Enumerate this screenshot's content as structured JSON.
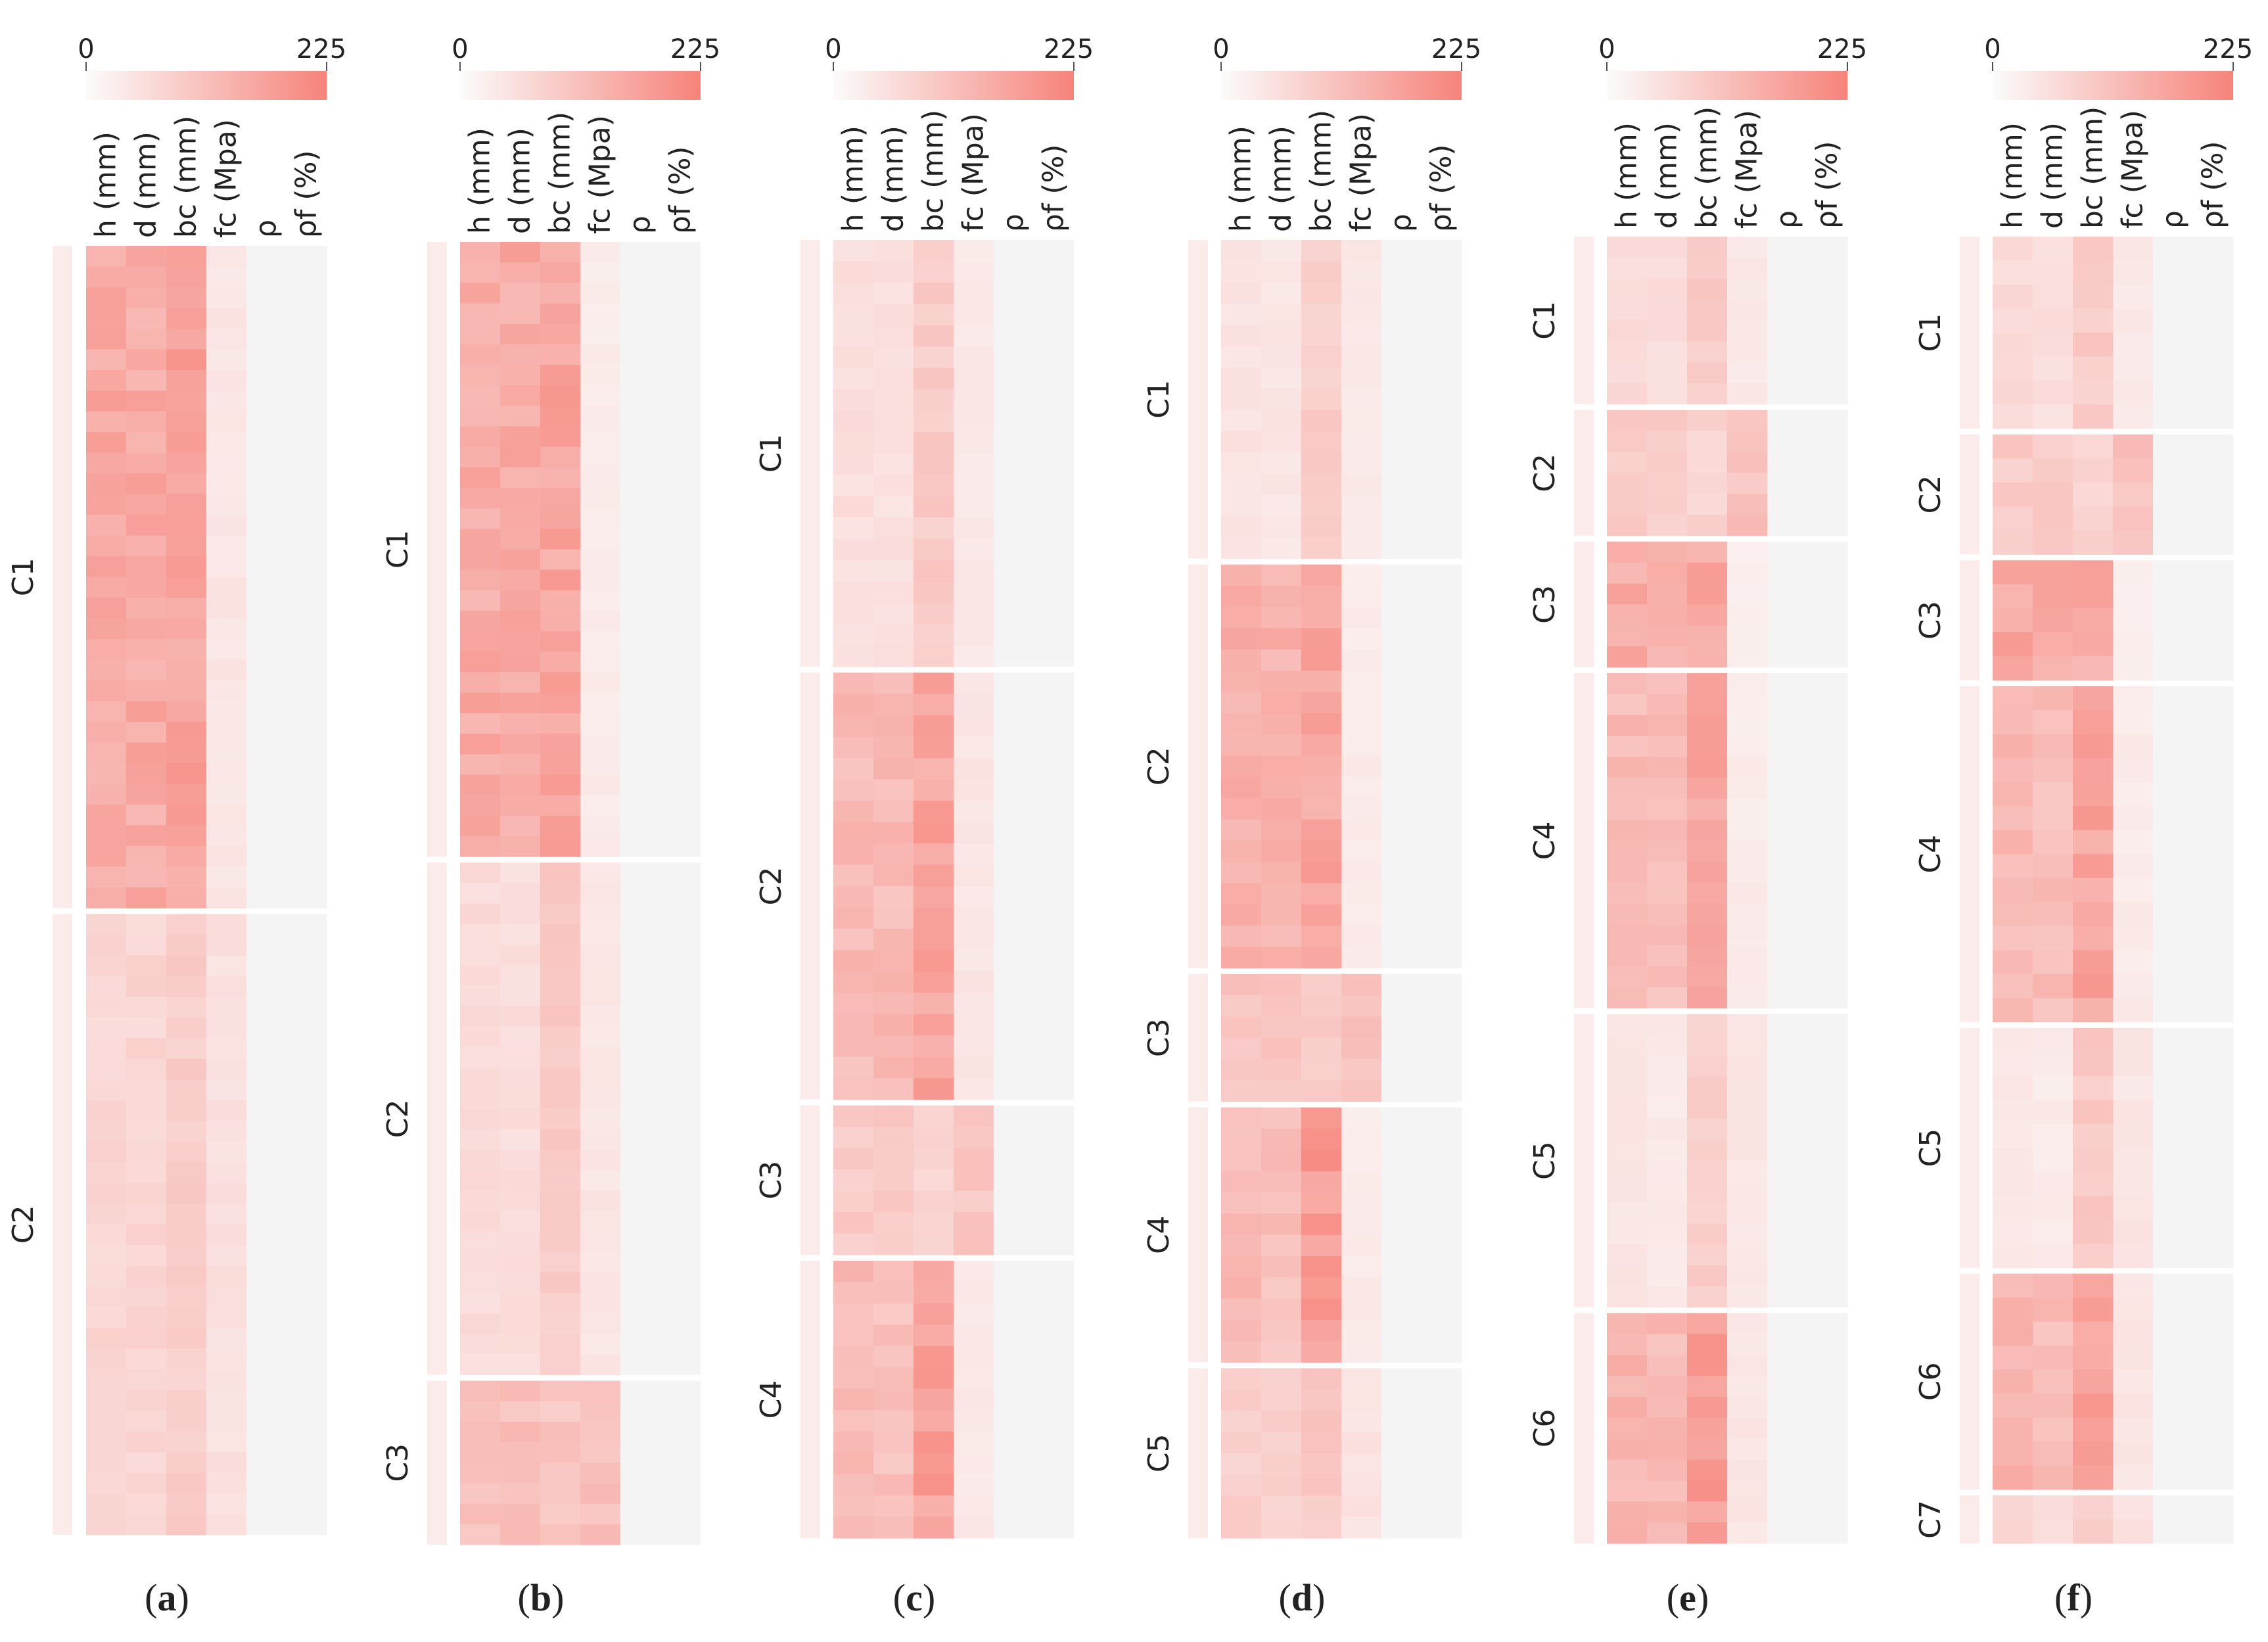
{
  "colors": {
    "low": "#fbfbfb",
    "high": "#f6837a",
    "background": "#f4f4f4",
    "separator": "#ffffff"
  },
  "chart_data": [
    {
      "type": "heatmap",
      "panel": "a",
      "colorbar": {
        "min": 0,
        "max": 225,
        "ticks": [
          "0",
          "225"
        ]
      },
      "columns": [
        "h (mm)",
        "d (mm)",
        "bc (mm)",
        "fc (Mpa)",
        "ρ",
        "ρf (%)"
      ],
      "clusters": [
        {
          "label": "C1",
          "rows": 32,
          "mean": [
            150,
            150,
            165,
            40,
            2,
            1
          ]
        },
        {
          "label": "C2",
          "rows": 30,
          "mean": [
            70,
            70,
            85,
            50,
            2,
            1
          ]
        }
      ]
    },
    {
      "type": "heatmap",
      "panel": "b",
      "colorbar": {
        "min": 0,
        "max": 225,
        "ticks": [
          "0",
          "225"
        ]
      },
      "columns": [
        "h (mm)",
        "d (mm)",
        "bc (mm)",
        "fc (Mpa)",
        "ρ",
        "ρf (%)"
      ],
      "clusters": [
        {
          "label": "C1",
          "rows": 30,
          "mean": [
            150,
            150,
            160,
            30,
            2,
            1
          ]
        },
        {
          "label": "C2",
          "rows": 25,
          "mean": [
            60,
            55,
            90,
            40,
            2,
            1
          ]
        },
        {
          "label": "C3",
          "rows": 8,
          "mean": [
            110,
            110,
            100,
            110,
            2,
            1
          ]
        }
      ]
    },
    {
      "type": "heatmap",
      "panel": "c",
      "colorbar": {
        "min": 0,
        "max": 225,
        "ticks": [
          "0",
          "225"
        ]
      },
      "columns": [
        "h (mm)",
        "d (mm)",
        "bc (mm)",
        "fc (Mpa)",
        "ρ",
        "ρf (%)"
      ],
      "clusters": [
        {
          "label": "C1",
          "rows": 20,
          "mean": [
            55,
            50,
            90,
            35,
            2,
            1
          ]
        },
        {
          "label": "C2",
          "rows": 20,
          "mean": [
            120,
            120,
            160,
            40,
            2,
            1
          ]
        },
        {
          "label": "C3",
          "rows": 7,
          "mean": [
            90,
            90,
            70,
            100,
            2,
            1
          ]
        },
        {
          "label": "C4",
          "rows": 13,
          "mean": [
            120,
            110,
            170,
            35,
            2,
            1
          ]
        }
      ]
    },
    {
      "type": "heatmap",
      "panel": "d",
      "colorbar": {
        "min": 0,
        "max": 225,
        "ticks": [
          "0",
          "225"
        ]
      },
      "columns": [
        "h (mm)",
        "d (mm)",
        "bc (mm)",
        "fc (Mpa)",
        "ρ",
        "ρf (%)"
      ],
      "clusters": [
        {
          "label": "C1",
          "rows": 15,
          "mean": [
            45,
            40,
            85,
            35,
            2,
            1
          ]
        },
        {
          "label": "C2",
          "rows": 19,
          "mean": [
            140,
            140,
            160,
            30,
            2,
            1
          ]
        },
        {
          "label": "C3",
          "rows": 6,
          "mean": [
            100,
            100,
            90,
            110,
            2,
            1
          ]
        },
        {
          "label": "C4",
          "rows": 12,
          "mean": [
            120,
            110,
            180,
            30,
            2,
            1
          ]
        },
        {
          "label": "C5",
          "rows": 8,
          "mean": [
            80,
            75,
            95,
            45,
            2,
            1
          ]
        }
      ]
    },
    {
      "type": "heatmap",
      "panel": "e",
      "colorbar": {
        "min": 0,
        "max": 225,
        "ticks": [
          "0",
          "225"
        ]
      },
      "columns": [
        "h (mm)",
        "d (mm)",
        "bc (mm)",
        "fc (Mpa)",
        "ρ",
        "ρf (%)"
      ],
      "clusters": [
        {
          "label": "C1",
          "rows": 8,
          "mean": [
            60,
            55,
            90,
            35,
            2,
            1
          ]
        },
        {
          "label": "C2",
          "rows": 6,
          "mean": [
            90,
            90,
            75,
            105,
            2,
            1
          ]
        },
        {
          "label": "C3",
          "rows": 6,
          "mean": [
            150,
            145,
            155,
            25,
            2,
            1
          ]
        },
        {
          "label": "C4",
          "rows": 16,
          "mean": [
            120,
            115,
            160,
            30,
            2,
            1
          ]
        },
        {
          "label": "C5",
          "rows": 14,
          "mean": [
            40,
            35,
            85,
            40,
            2,
            1
          ]
        },
        {
          "label": "C6",
          "rows": 11,
          "mean": [
            130,
            120,
            180,
            40,
            2,
            1
          ]
        }
      ]
    },
    {
      "type": "heatmap",
      "panel": "f",
      "colorbar": {
        "min": 0,
        "max": 225,
        "ticks": [
          "0",
          "225"
        ]
      },
      "columns": [
        "h (mm)",
        "d (mm)",
        "bc (mm)",
        "fc (Mpa)",
        "ρ",
        "ρf (%)"
      ],
      "clusters": [
        {
          "label": "C1",
          "rows": 8,
          "mean": [
            60,
            55,
            90,
            35,
            2,
            1
          ]
        },
        {
          "label": "C2",
          "rows": 5,
          "mean": [
            90,
            90,
            75,
            105,
            2,
            1
          ]
        },
        {
          "label": "C3",
          "rows": 5,
          "mean": [
            155,
            150,
            150,
            25,
            2,
            1
          ]
        },
        {
          "label": "C4",
          "rows": 14,
          "mean": [
            120,
            115,
            160,
            30,
            2,
            1
          ]
        },
        {
          "label": "C5",
          "rows": 10,
          "mean": [
            35,
            30,
            90,
            40,
            2,
            1
          ]
        },
        {
          "label": "C6",
          "rows": 9,
          "mean": [
            130,
            115,
            175,
            40,
            2,
            1
          ]
        },
        {
          "label": "C7",
          "rows": 2,
          "mean": [
            70,
            60,
            85,
            50,
            2,
            1
          ]
        }
      ]
    }
  ]
}
